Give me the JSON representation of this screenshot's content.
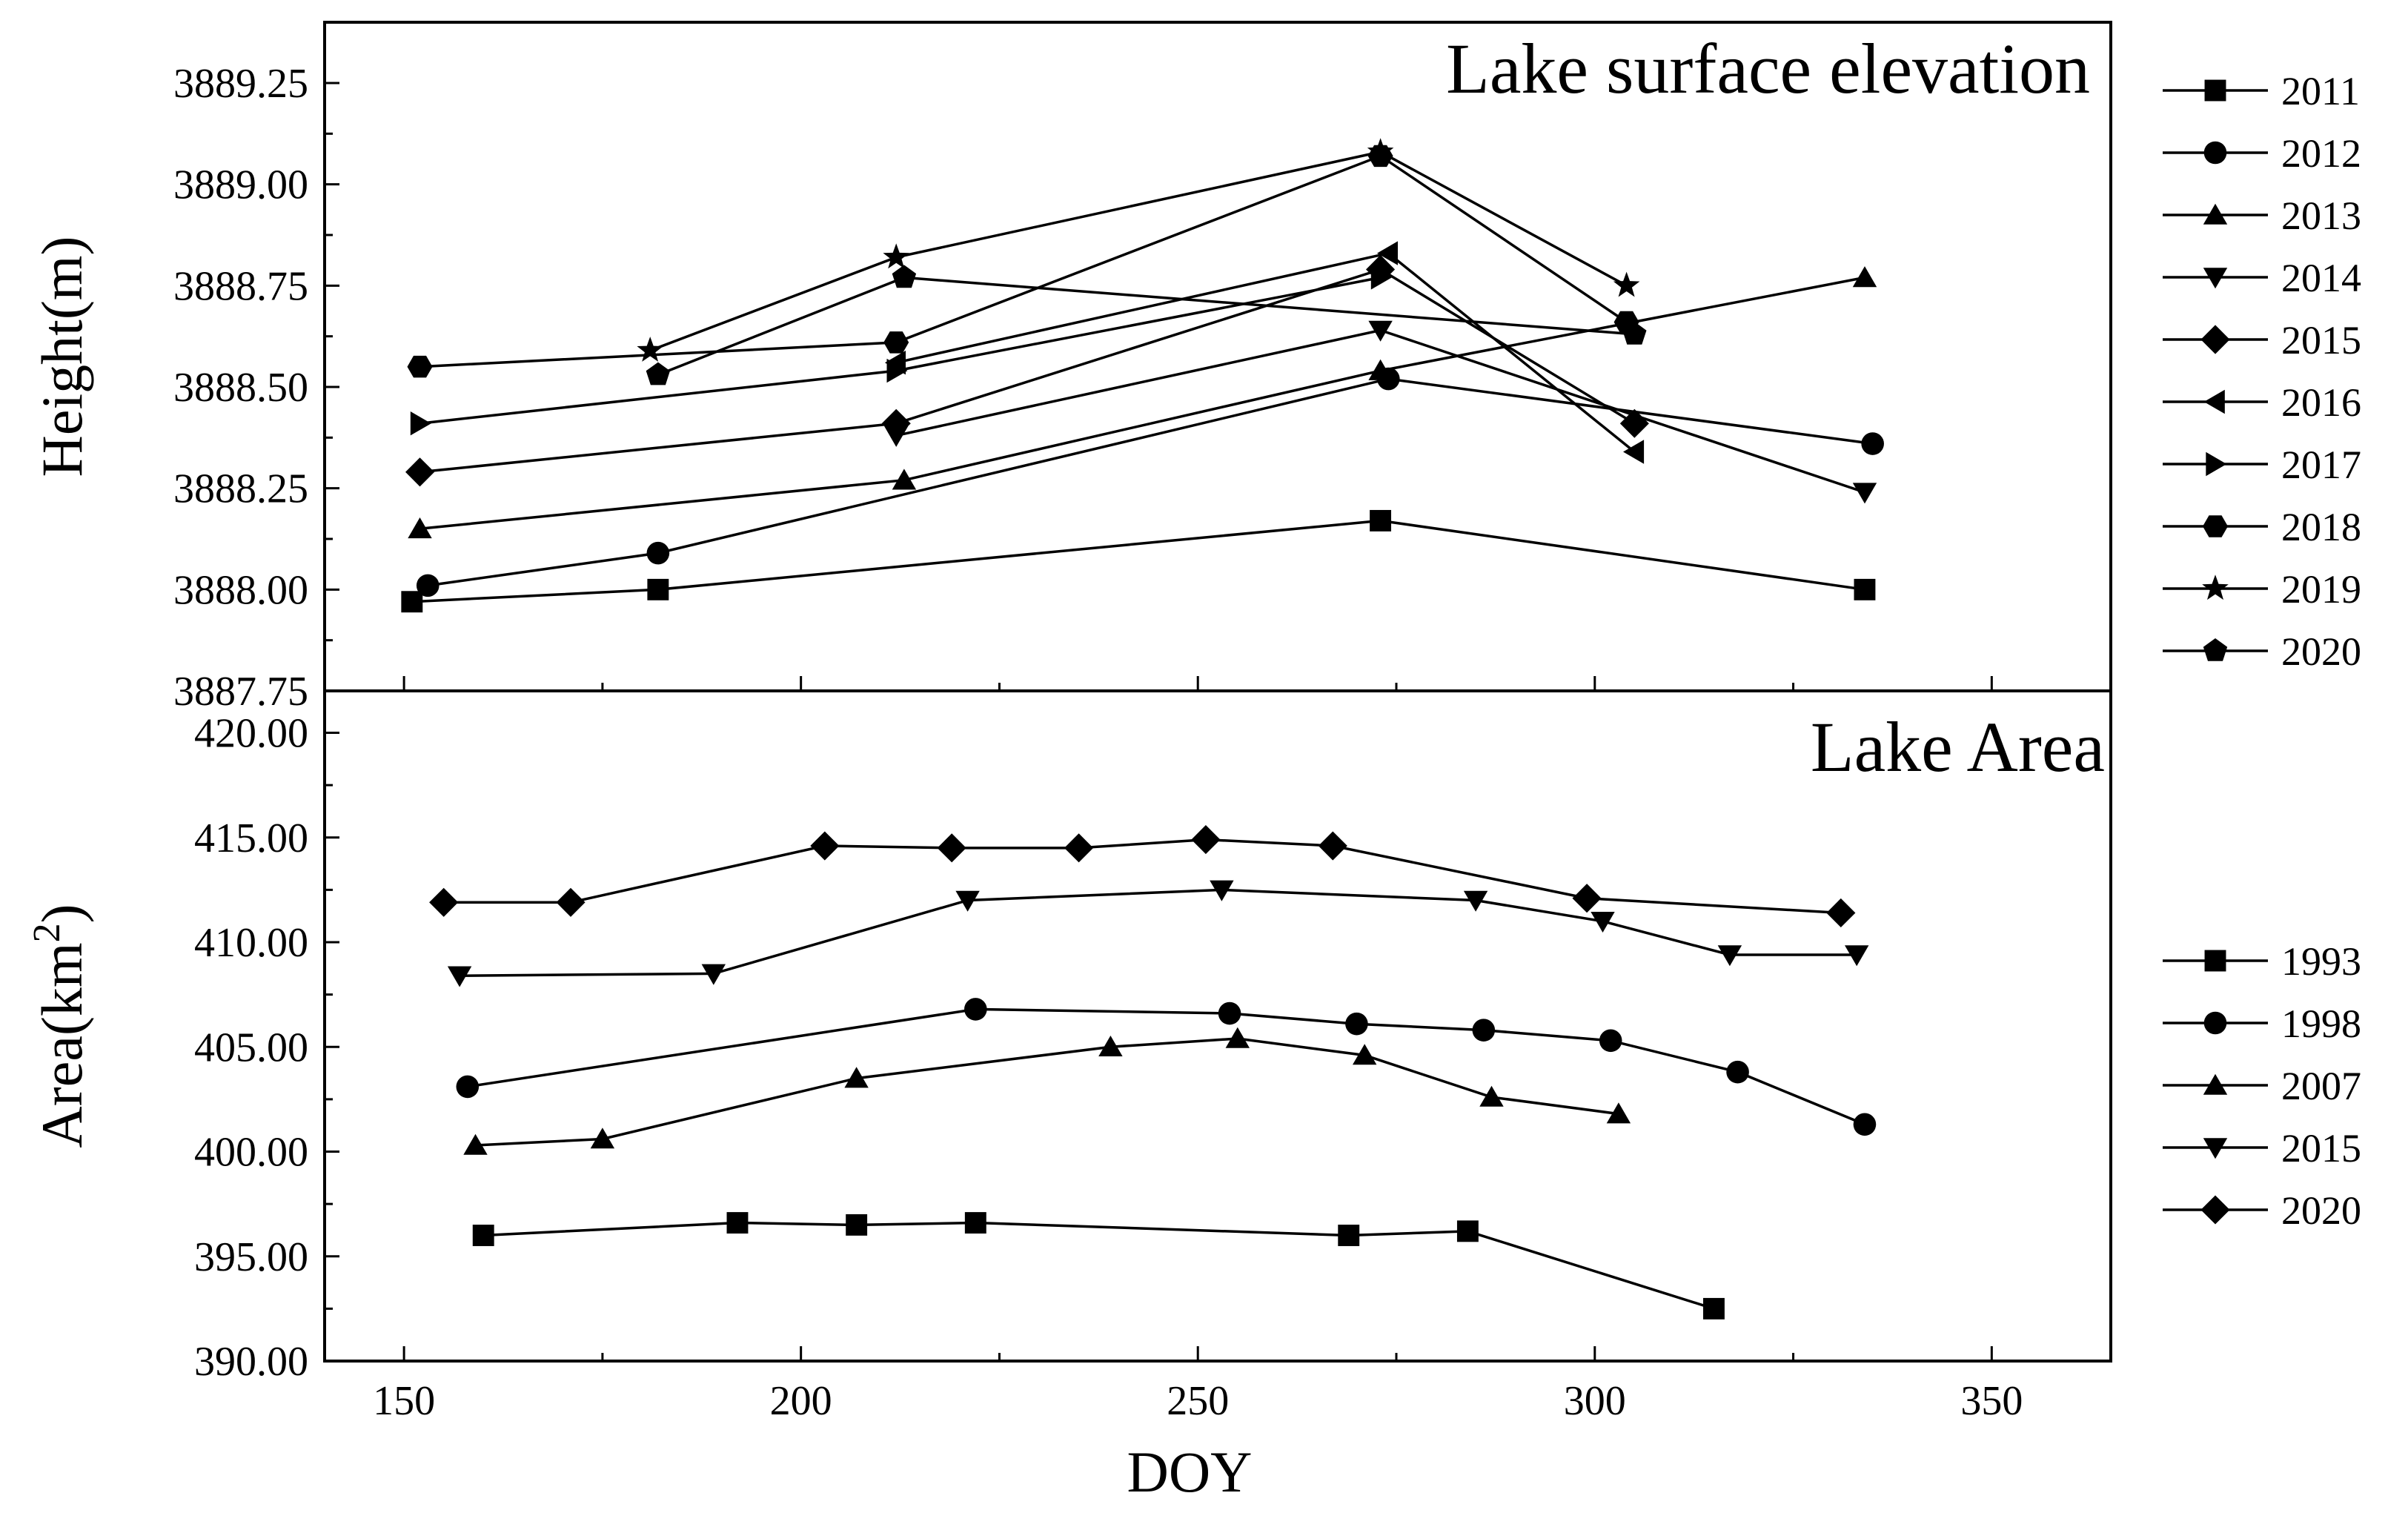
{
  "chart_data": [
    {
      "type": "line",
      "title": "Lake surface elevation",
      "xlabel": "DOY",
      "ylabel": "Height(m)",
      "xlim": [
        140,
        365
      ],
      "ylim": [
        3887.75,
        3889.4
      ],
      "xticks": [
        150,
        200,
        250,
        300,
        350
      ],
      "xtick_labels": [
        "150",
        "200",
        "250",
        "300",
        "350"
      ],
      "yticks": [
        3887.75,
        3888.0,
        3888.25,
        3888.5,
        3888.75,
        3889.0,
        3889.25
      ],
      "ytick_labels": [
        "3887.75",
        "3888.00",
        "3888.25",
        "3888.50",
        "3888.75",
        "3889.00",
        "3889.25"
      ],
      "legend_position": "right",
      "series": [
        {
          "name": "2011",
          "marker": "square",
          "x": [
            151,
            182,
            273,
            334
          ],
          "y": [
            3887.97,
            3888.0,
            3888.17,
            3888.0
          ]
        },
        {
          "name": "2012",
          "marker": "circle",
          "x": [
            153,
            182,
            274,
            335
          ],
          "y": [
            3888.01,
            3888.09,
            3888.52,
            3888.36
          ]
        },
        {
          "name": "2013",
          "marker": "triangle-up",
          "x": [
            152,
            213,
            273,
            334
          ],
          "y": [
            3888.15,
            3888.27,
            3888.54,
            3888.77
          ]
        },
        {
          "name": "2014",
          "marker": "triangle-down",
          "x": [
            212,
            273,
            334
          ],
          "y": [
            3888.38,
            3888.64,
            3888.24
          ]
        },
        {
          "name": "2015",
          "marker": "diamond",
          "x": [
            152,
            212,
            273,
            305
          ],
          "y": [
            3888.29,
            3888.41,
            3888.79,
            3888.41
          ]
        },
        {
          "name": "2016",
          "marker": "triangle-left",
          "x": [
            212,
            274,
            305
          ],
          "y": [
            3888.56,
            3888.83,
            3888.34
          ]
        },
        {
          "name": "2017",
          "marker": "triangle-right",
          "x": [
            152,
            212,
            273
          ],
          "y": [
            3888.41,
            3888.54,
            3888.77
          ]
        },
        {
          "name": "2018",
          "marker": "hexagon",
          "x": [
            152,
            212,
            273,
            304
          ],
          "y": [
            3888.55,
            3888.61,
            3889.07,
            3888.66
          ]
        },
        {
          "name": "2019",
          "marker": "star",
          "x": [
            181,
            212,
            273,
            304
          ],
          "y": [
            3888.59,
            3888.82,
            3889.08,
            3888.75
          ]
        },
        {
          "name": "2020",
          "marker": "pentagon",
          "x": [
            182,
            213,
            305
          ],
          "y": [
            3888.53,
            3888.77,
            3888.63
          ]
        }
      ]
    },
    {
      "type": "line",
      "title": "Lake Area",
      "xlabel": "DOY",
      "ylabel": "Area(km2)",
      "ylabel_main": "Area(km",
      "ylabel_sup": "2",
      "ylabel_close": ")",
      "xlim": [
        140,
        365
      ],
      "ylim": [
        390.0,
        422.0
      ],
      "xticks": [
        150,
        200,
        250,
        300,
        350
      ],
      "xtick_labels": [
        "150",
        "200",
        "250",
        "300",
        "350"
      ],
      "yticks": [
        390,
        395,
        400,
        405,
        410,
        415,
        420
      ],
      "ytick_labels": [
        "390.00",
        "395.00",
        "400.00",
        "405.00",
        "410.00",
        "415.00",
        "420.00"
      ],
      "legend_position": "right",
      "series": [
        {
          "name": "1993",
          "marker": "square",
          "x": [
            160,
            192,
            207,
            222,
            269,
            284,
            315
          ],
          "y": [
            396.0,
            396.6,
            396.5,
            396.6,
            396.0,
            396.2,
            392.5
          ]
        },
        {
          "name": "1998",
          "marker": "circle",
          "x": [
            158,
            222,
            254,
            270,
            286,
            302,
            318,
            334
          ],
          "y": [
            403.1,
            406.8,
            406.6,
            406.1,
            405.8,
            405.3,
            403.8,
            401.3
          ]
        },
        {
          "name": "2007",
          "marker": "triangle-up",
          "x": [
            159,
            175,
            207,
            239,
            255,
            271,
            287,
            303
          ],
          "y": [
            400.3,
            400.6,
            403.5,
            405.0,
            405.4,
            404.6,
            402.6,
            401.8
          ]
        },
        {
          "name": "2015",
          "marker": "triangle-down",
          "x": [
            157,
            189,
            221,
            253,
            285,
            301,
            317,
            333
          ],
          "y": [
            408.4,
            408.5,
            412.0,
            412.5,
            412.0,
            411.0,
            409.4,
            409.4
          ]
        },
        {
          "name": "2020",
          "marker": "diamond",
          "x": [
            155,
            171,
            203,
            219,
            235,
            251,
            267,
            299,
            331
          ],
          "y": [
            411.9,
            411.9,
            414.6,
            414.5,
            414.5,
            414.9,
            414.6,
            412.1,
            411.4
          ]
        }
      ]
    }
  ]
}
